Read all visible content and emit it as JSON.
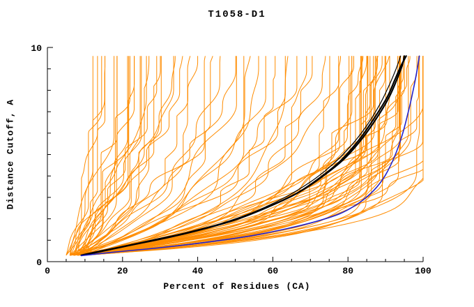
{
  "chart_data": {
    "type": "line",
    "title": "T1058-D1",
    "xlabel": "Percent of Residues (CA)",
    "ylabel": "Distance Cutoff, A",
    "xlim": [
      0,
      100
    ],
    "ylim": [
      0,
      10
    ],
    "x_ticks": [
      0,
      20,
      40,
      60,
      80,
      100
    ],
    "x_minor_tick_step": 5,
    "y_labeled_ticks": [
      0,
      10
    ],
    "y_minor_tick_step": 1,
    "grid": false,
    "legend": "none",
    "colors": {
      "predictions": "#FF8C00",
      "highlight": "#000000",
      "reference": "#2222CC",
      "axis": "#000000",
      "background": "#FFFFFF"
    },
    "curve_model": "each orange curve [x0,xend,k]: x(y)=x0+(xend-x0)*(1-exp(-k*(y-0.3)))/(1-exp(-k*9.3)) for y in [0.3,9.6]",
    "orange_curves": [
      [
        8,
        99.5,
        1.0
      ],
      [
        9,
        99,
        0.7
      ],
      [
        7,
        98.5,
        0.5
      ],
      [
        10,
        98,
        0.85
      ],
      [
        6,
        97.5,
        0.6
      ],
      [
        8,
        97,
        1.1
      ],
      [
        9,
        96.5,
        0.45
      ],
      [
        7,
        96,
        0.75
      ],
      [
        10,
        95.5,
        0.95
      ],
      [
        8,
        95,
        0.55
      ],
      [
        6,
        94.5,
        0.8
      ],
      [
        9,
        94,
        0.4
      ],
      [
        7,
        93.5,
        1.05
      ],
      [
        10,
        93,
        0.65
      ],
      [
        8,
        92.5,
        0.5
      ],
      [
        6,
        92,
        0.9
      ],
      [
        9,
        91.5,
        0.7
      ],
      [
        7,
        91,
        0.45
      ],
      [
        10,
        90.5,
        1.0
      ],
      [
        8,
        90,
        0.6
      ],
      [
        6,
        89.5,
        0.8
      ],
      [
        9,
        89,
        0.5
      ],
      [
        7,
        88.5,
        0.95
      ],
      [
        10,
        88,
        0.42
      ],
      [
        8,
        87.5,
        0.7
      ],
      [
        6,
        87,
        1.05
      ],
      [
        9,
        86.5,
        0.55
      ],
      [
        7,
        86,
        0.8
      ],
      [
        10,
        85.5,
        0.48
      ],
      [
        8,
        85,
        0.9
      ],
      [
        6,
        84.5,
        0.62
      ],
      [
        9,
        84,
        0.4
      ],
      [
        7,
        83.5,
        0.75
      ],
      [
        10,
        83,
        1.0
      ],
      [
        8,
        82.5,
        0.52
      ],
      [
        6,
        82,
        0.68
      ],
      [
        9,
        81.5,
        0.85
      ],
      [
        7,
        81,
        0.45
      ],
      [
        10,
        80.5,
        0.6
      ],
      [
        8,
        80,
        0.75
      ],
      [
        6,
        79.5,
        0.5
      ],
      [
        9,
        79,
        0.65
      ],
      [
        8,
        78,
        0.45
      ],
      [
        6,
        76,
        0.6
      ],
      [
        9,
        74,
        0.35
      ],
      [
        7,
        72,
        0.5
      ],
      [
        10,
        70,
        0.4
      ],
      [
        8,
        68,
        0.55
      ],
      [
        6,
        66,
        0.3
      ],
      [
        9,
        64,
        0.45
      ],
      [
        7,
        62,
        0.38
      ],
      [
        10,
        60,
        0.5
      ],
      [
        8,
        58,
        0.32
      ],
      [
        6,
        56,
        0.42
      ],
      [
        9,
        54,
        0.36
      ],
      [
        7,
        52,
        0.48
      ],
      [
        10,
        50,
        0.3
      ],
      [
        8,
        48,
        0.4
      ],
      [
        7,
        46,
        0.3
      ],
      [
        9,
        44,
        0.22
      ],
      [
        6,
        42,
        0.35
      ],
      [
        8,
        40,
        0.25
      ],
      [
        10,
        38,
        0.3
      ],
      [
        7,
        36,
        0.2
      ],
      [
        9,
        34,
        0.28
      ],
      [
        6,
        32,
        0.33
      ],
      [
        8,
        30,
        0.22
      ],
      [
        10,
        29,
        0.3
      ],
      [
        7,
        28,
        0.25
      ],
      [
        9,
        27,
        0.2
      ],
      [
        6,
        26,
        0.3
      ],
      [
        8,
        25,
        0.24
      ],
      [
        5,
        24,
        0.28
      ],
      [
        7,
        23,
        0.2
      ],
      [
        9,
        22,
        0.26
      ],
      [
        6,
        21,
        0.22
      ],
      [
        8,
        20,
        0.3
      ],
      [
        10,
        19,
        0.2
      ],
      [
        7,
        18,
        0.25
      ],
      [
        5,
        17,
        0.22
      ],
      [
        9,
        16,
        0.28
      ],
      [
        6,
        15,
        0.2
      ],
      [
        8,
        14,
        0.24
      ],
      [
        5,
        13,
        0.26
      ],
      [
        7,
        12,
        0.2
      ],
      [
        6,
        11,
        0.22
      ]
    ],
    "black_curves": [
      {
        "lw": 2.2,
        "points": [
          [
            9,
            0.3
          ],
          [
            13,
            0.45
          ],
          [
            20,
            0.7
          ],
          [
            28,
            1.0
          ],
          [
            36,
            1.3
          ],
          [
            44,
            1.65
          ],
          [
            52,
            2.1
          ],
          [
            60,
            2.65
          ],
          [
            67,
            3.25
          ],
          [
            73,
            3.95
          ],
          [
            79,
            4.8
          ],
          [
            84,
            5.8
          ],
          [
            88,
            6.8
          ],
          [
            91,
            7.7
          ],
          [
            93,
            8.5
          ],
          [
            94.5,
            9.2
          ],
          [
            95,
            9.6
          ]
        ]
      },
      {
        "lw": 2.2,
        "points": [
          [
            10,
            0.32
          ],
          [
            15,
            0.5
          ],
          [
            23,
            0.8
          ],
          [
            32,
            1.12
          ],
          [
            41,
            1.5
          ],
          [
            50,
            1.95
          ],
          [
            58,
            2.5
          ],
          [
            66,
            3.15
          ],
          [
            72,
            3.85
          ],
          [
            78,
            4.7
          ],
          [
            83,
            5.7
          ],
          [
            87,
            6.7
          ],
          [
            90.5,
            7.7
          ],
          [
            92.5,
            8.5
          ],
          [
            94,
            9.1
          ],
          [
            95.5,
            9.6
          ]
        ]
      },
      {
        "lw": 1.2,
        "points": [
          [
            9,
            0.3
          ],
          [
            14,
            0.5
          ],
          [
            22,
            0.77
          ],
          [
            30,
            1.05
          ],
          [
            38,
            1.4
          ],
          [
            47,
            1.82
          ],
          [
            55,
            2.32
          ],
          [
            63,
            2.98
          ],
          [
            70,
            3.72
          ],
          [
            76,
            4.55
          ],
          [
            81,
            5.45
          ],
          [
            85,
            6.35
          ],
          [
            88.5,
            7.35
          ],
          [
            91,
            8.25
          ],
          [
            92.8,
            9.0
          ],
          [
            94,
            9.6
          ]
        ]
      }
    ],
    "blue_curves": [
      {
        "lw": 1.6,
        "points": [
          [
            9,
            0.28
          ],
          [
            18,
            0.45
          ],
          [
            30,
            0.65
          ],
          [
            42,
            0.9
          ],
          [
            54,
            1.2
          ],
          [
            64,
            1.55
          ],
          [
            72,
            1.9
          ],
          [
            78,
            2.25
          ],
          [
            83,
            2.75
          ],
          [
            87,
            3.35
          ],
          [
            90,
            4.05
          ],
          [
            92.5,
            4.95
          ],
          [
            94.5,
            5.95
          ],
          [
            96,
            6.95
          ],
          [
            97.3,
            7.95
          ],
          [
            98.3,
            8.85
          ],
          [
            99,
            9.6
          ]
        ]
      }
    ]
  }
}
